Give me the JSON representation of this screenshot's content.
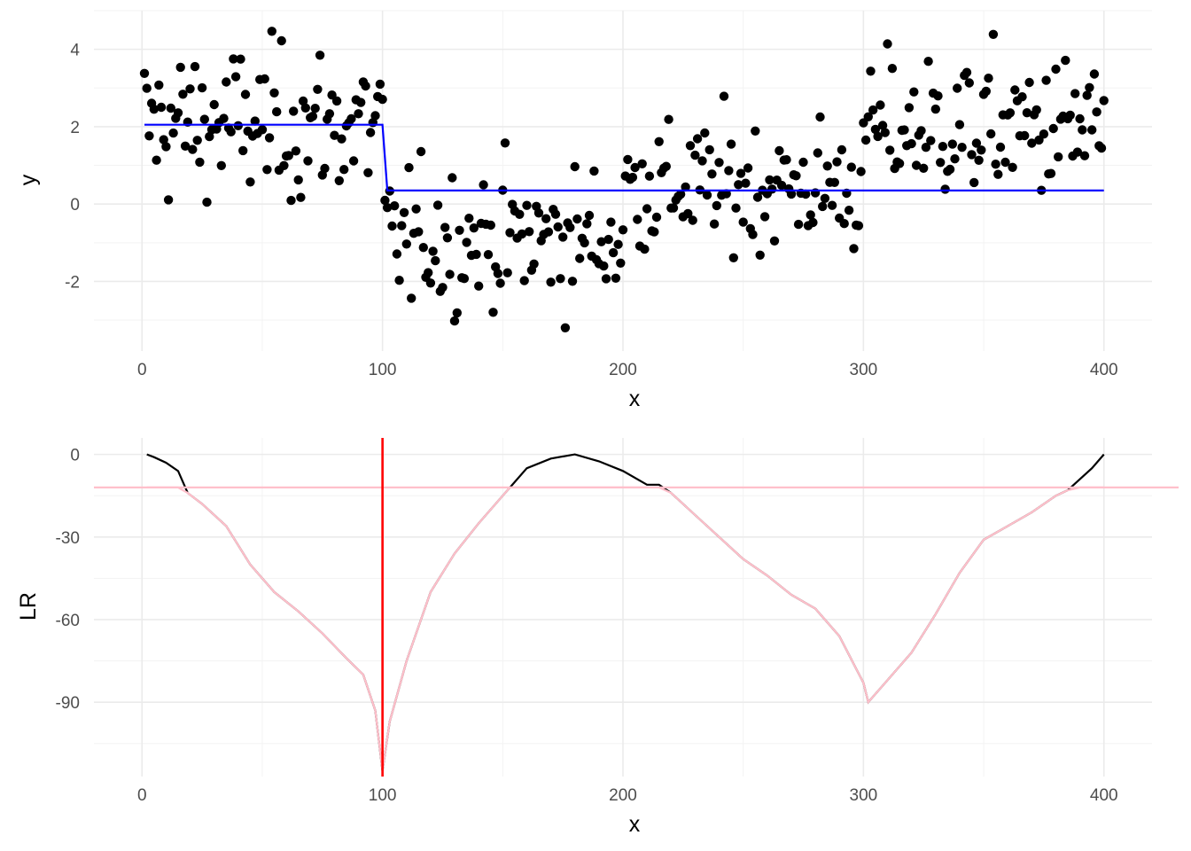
{
  "chart_data": [
    {
      "type": "scatter",
      "title": "",
      "xlabel": "x",
      "ylabel": "y",
      "xlim": [
        -20,
        420
      ],
      "ylim": [
        -3.8,
        5.0
      ],
      "xticks": [
        0,
        100,
        200,
        300,
        400
      ],
      "yticks": [
        -2,
        0,
        2,
        4
      ],
      "grid": true,
      "legend": "none",
      "point_color": "#000000",
      "fit_color": "#0000ff",
      "segments": [
        {
          "from": 1,
          "to": 100,
          "mean": 2.05,
          "sd": 1.0
        },
        {
          "from": 101,
          "to": 200,
          "mean": -0.9,
          "sd": 0.9
        },
        {
          "from": 201,
          "to": 300,
          "mean": 0.45,
          "sd": 0.85
        },
        {
          "from": 301,
          "to": 400,
          "mean": 1.95,
          "sd": 0.95
        }
      ],
      "series": [
        {
          "name": "",
          "type": "step-line",
          "x": [
            1,
            100,
            102,
            400
          ],
          "y": [
            2.05,
            2.05,
            0.35,
            0.35
          ]
        }
      ]
    },
    {
      "type": "line",
      "title": "",
      "xlabel": "x",
      "ylabel": "LR",
      "xlim": [
        -20,
        420
      ],
      "ylim": [
        -117,
        6
      ],
      "xticks": [
        0,
        100,
        200,
        300,
        400
      ],
      "yticks": [
        -90,
        -60,
        -30,
        0
      ],
      "grid": true,
      "legend": "none",
      "threshold": -12,
      "threshold_color": "#ffc0cb",
      "changepoint": 100,
      "changepoint_color": "#ff0000",
      "line_color": "#000000",
      "series": [
        {
          "name": "",
          "x": [
            2,
            5,
            10,
            15,
            19,
            25,
            35,
            45,
            55,
            65,
            75,
            85,
            92,
            97,
            100,
            103,
            110,
            120,
            130,
            140,
            150,
            153,
            160,
            170,
            180,
            190,
            200,
            210,
            215,
            220,
            230,
            240,
            250,
            260,
            270,
            280,
            290,
            300,
            302,
            310,
            320,
            330,
            340,
            350,
            360,
            370,
            380,
            385,
            390,
            395,
            400
          ],
          "y": [
            0,
            -1,
            -3,
            -6,
            -14,
            -18,
            -26,
            -40,
            -50,
            -57,
            -65,
            -74,
            -80,
            -93,
            -115,
            -97,
            -75,
            -50,
            -36,
            -25,
            -15,
            -12,
            -5,
            -1.5,
            0,
            -2.5,
            -6,
            -11,
            -11,
            -14,
            -22,
            -30,
            -38,
            -44,
            -51,
            -56,
            -66,
            -83,
            -90,
            -82,
            -72,
            -58,
            -43,
            -31,
            -26,
            -21,
            -15,
            -13,
            -9,
            -5,
            0
          ]
        }
      ]
    }
  ]
}
